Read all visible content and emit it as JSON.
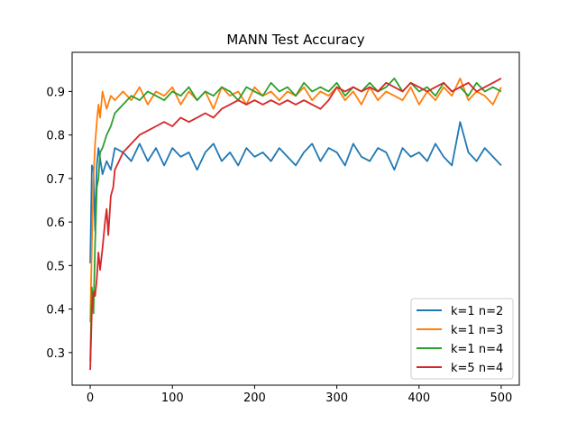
{
  "chart_data": {
    "type": "line",
    "title": "MANN Test Accuracy",
    "xlabel": "",
    "ylabel": "",
    "xlim": [
      -22,
      522
    ],
    "ylim": [
      0.225,
      0.99
    ],
    "xticks": [
      0,
      100,
      200,
      300,
      400,
      500
    ],
    "yticks": [
      0.3,
      0.4,
      0.5,
      0.6,
      0.7,
      0.8,
      0.9
    ],
    "grid": false,
    "legend_position": "lower-right",
    "series": [
      {
        "name": "k=1 n=2",
        "color": "#1f77b4",
        "x": [
          0,
          2,
          4,
          6,
          8,
          10,
          15,
          20,
          25,
          30,
          40,
          50,
          60,
          70,
          80,
          90,
          100,
          110,
          120,
          130,
          140,
          150,
          160,
          170,
          180,
          190,
          200,
          210,
          220,
          230,
          240,
          250,
          260,
          270,
          280,
          290,
          300,
          310,
          320,
          330,
          340,
          350,
          360,
          370,
          380,
          390,
          400,
          410,
          420,
          430,
          440,
          450,
          460,
          470,
          480,
          490,
          500
        ],
        "y": [
          0.505,
          0.73,
          0.72,
          0.58,
          0.73,
          0.77,
          0.71,
          0.74,
          0.72,
          0.77,
          0.76,
          0.74,
          0.78,
          0.74,
          0.77,
          0.73,
          0.77,
          0.75,
          0.76,
          0.72,
          0.76,
          0.78,
          0.74,
          0.76,
          0.73,
          0.77,
          0.75,
          0.76,
          0.74,
          0.77,
          0.75,
          0.73,
          0.76,
          0.78,
          0.74,
          0.77,
          0.76,
          0.73,
          0.78,
          0.75,
          0.74,
          0.77,
          0.76,
          0.72,
          0.77,
          0.75,
          0.76,
          0.74,
          0.78,
          0.75,
          0.73,
          0.83,
          0.76,
          0.74,
          0.77,
          0.75,
          0.73
        ]
      },
      {
        "name": "k=1 n=3",
        "color": "#ff7f0e",
        "x": [
          0,
          2,
          4,
          6,
          8,
          10,
          12,
          15,
          20,
          25,
          30,
          40,
          50,
          60,
          70,
          80,
          90,
          100,
          110,
          120,
          130,
          140,
          150,
          160,
          170,
          180,
          190,
          200,
          210,
          220,
          230,
          240,
          250,
          260,
          270,
          280,
          290,
          300,
          310,
          320,
          330,
          340,
          350,
          360,
          370,
          380,
          390,
          400,
          410,
          420,
          430,
          440,
          450,
          460,
          470,
          480,
          490,
          500
        ],
        "y": [
          0.37,
          0.55,
          0.7,
          0.78,
          0.83,
          0.87,
          0.84,
          0.9,
          0.86,
          0.89,
          0.88,
          0.9,
          0.88,
          0.91,
          0.87,
          0.9,
          0.89,
          0.91,
          0.87,
          0.9,
          0.88,
          0.9,
          0.86,
          0.91,
          0.89,
          0.9,
          0.87,
          0.91,
          0.89,
          0.9,
          0.88,
          0.9,
          0.89,
          0.91,
          0.88,
          0.9,
          0.89,
          0.91,
          0.88,
          0.9,
          0.87,
          0.91,
          0.88,
          0.9,
          0.89,
          0.88,
          0.91,
          0.87,
          0.9,
          0.88,
          0.91,
          0.89,
          0.93,
          0.88,
          0.9,
          0.89,
          0.87,
          0.91
        ]
      },
      {
        "name": "k=1 n=4",
        "color": "#2ca02c",
        "x": [
          0,
          2,
          4,
          6,
          8,
          10,
          12,
          15,
          20,
          25,
          30,
          40,
          50,
          60,
          70,
          80,
          90,
          100,
          110,
          120,
          130,
          140,
          150,
          160,
          170,
          180,
          190,
          200,
          210,
          220,
          230,
          240,
          250,
          260,
          270,
          280,
          290,
          300,
          310,
          320,
          330,
          340,
          350,
          360,
          370,
          380,
          390,
          400,
          410,
          420,
          430,
          440,
          450,
          460,
          470,
          480,
          490,
          500
        ],
        "y": [
          0.28,
          0.45,
          0.39,
          0.55,
          0.68,
          0.7,
          0.76,
          0.77,
          0.8,
          0.82,
          0.85,
          0.87,
          0.89,
          0.88,
          0.9,
          0.89,
          0.88,
          0.9,
          0.89,
          0.91,
          0.88,
          0.9,
          0.89,
          0.91,
          0.9,
          0.88,
          0.91,
          0.9,
          0.89,
          0.92,
          0.9,
          0.91,
          0.89,
          0.92,
          0.9,
          0.91,
          0.9,
          0.92,
          0.89,
          0.91,
          0.9,
          0.92,
          0.9,
          0.91,
          0.93,
          0.9,
          0.92,
          0.9,
          0.91,
          0.89,
          0.92,
          0.9,
          0.91,
          0.89,
          0.92,
          0.9,
          0.91,
          0.9
        ]
      },
      {
        "name": "k=5 n=4",
        "color": "#d62728",
        "x": [
          0,
          2,
          4,
          6,
          8,
          10,
          12,
          15,
          18,
          20,
          22,
          25,
          28,
          30,
          35,
          40,
          45,
          50,
          60,
          70,
          80,
          90,
          100,
          110,
          120,
          130,
          140,
          150,
          160,
          170,
          180,
          190,
          200,
          210,
          220,
          230,
          240,
          250,
          260,
          270,
          280,
          290,
          300,
          310,
          320,
          330,
          340,
          350,
          360,
          370,
          380,
          390,
          400,
          410,
          420,
          430,
          440,
          450,
          460,
          470,
          480,
          490,
          500
        ],
        "y": [
          0.26,
          0.4,
          0.44,
          0.43,
          0.47,
          0.53,
          0.49,
          0.54,
          0.6,
          0.63,
          0.57,
          0.66,
          0.68,
          0.72,
          0.74,
          0.76,
          0.77,
          0.78,
          0.8,
          0.81,
          0.82,
          0.83,
          0.82,
          0.84,
          0.83,
          0.84,
          0.85,
          0.84,
          0.86,
          0.87,
          0.88,
          0.87,
          0.88,
          0.87,
          0.88,
          0.87,
          0.88,
          0.87,
          0.88,
          0.87,
          0.86,
          0.88,
          0.91,
          0.9,
          0.91,
          0.9,
          0.91,
          0.9,
          0.92,
          0.91,
          0.9,
          0.92,
          0.91,
          0.9,
          0.91,
          0.92,
          0.9,
          0.91,
          0.92,
          0.9,
          0.91,
          0.92,
          0.93
        ]
      }
    ]
  }
}
